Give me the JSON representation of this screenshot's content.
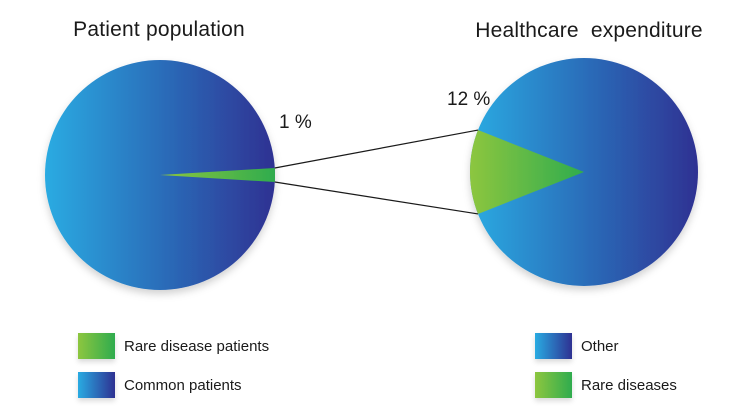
{
  "colors": {
    "background": "#FFFFFF",
    "text": "#1A1A1A",
    "connector_line": "#1A1A1A",
    "blue_gradient": [
      "#29ABE2",
      "#2E3192"
    ],
    "green_gradient": [
      "#8DC63F",
      "#2FAC4E"
    ]
  },
  "chart_data": [
    {
      "type": "pie",
      "title": "Patient population",
      "annotation": "1 %",
      "slices": [
        {
          "label": "Rare disease patients",
          "value": 1,
          "swatch": "green"
        },
        {
          "label": "Common patients",
          "value": 99,
          "swatch": "blue"
        }
      ],
      "legend": [
        {
          "label": "Rare disease patients",
          "swatch": "green"
        },
        {
          "label": "Common patients",
          "swatch": "blue"
        }
      ],
      "legend_position": "bottom-left",
      "slice_pointing": "right"
    },
    {
      "type": "pie",
      "title": "Healthcare  expenditure",
      "annotation": "12 %",
      "slices": [
        {
          "label": "Rare diseases",
          "value": 12,
          "swatch": "green"
        },
        {
          "label": "Other",
          "value": 88,
          "swatch": "blue"
        }
      ],
      "legend": [
        {
          "label": "Other",
          "swatch": "blue"
        },
        {
          "label": "Rare diseases",
          "swatch": "green"
        }
      ],
      "legend_position": "bottom-right",
      "slice_pointing": "left"
    }
  ]
}
